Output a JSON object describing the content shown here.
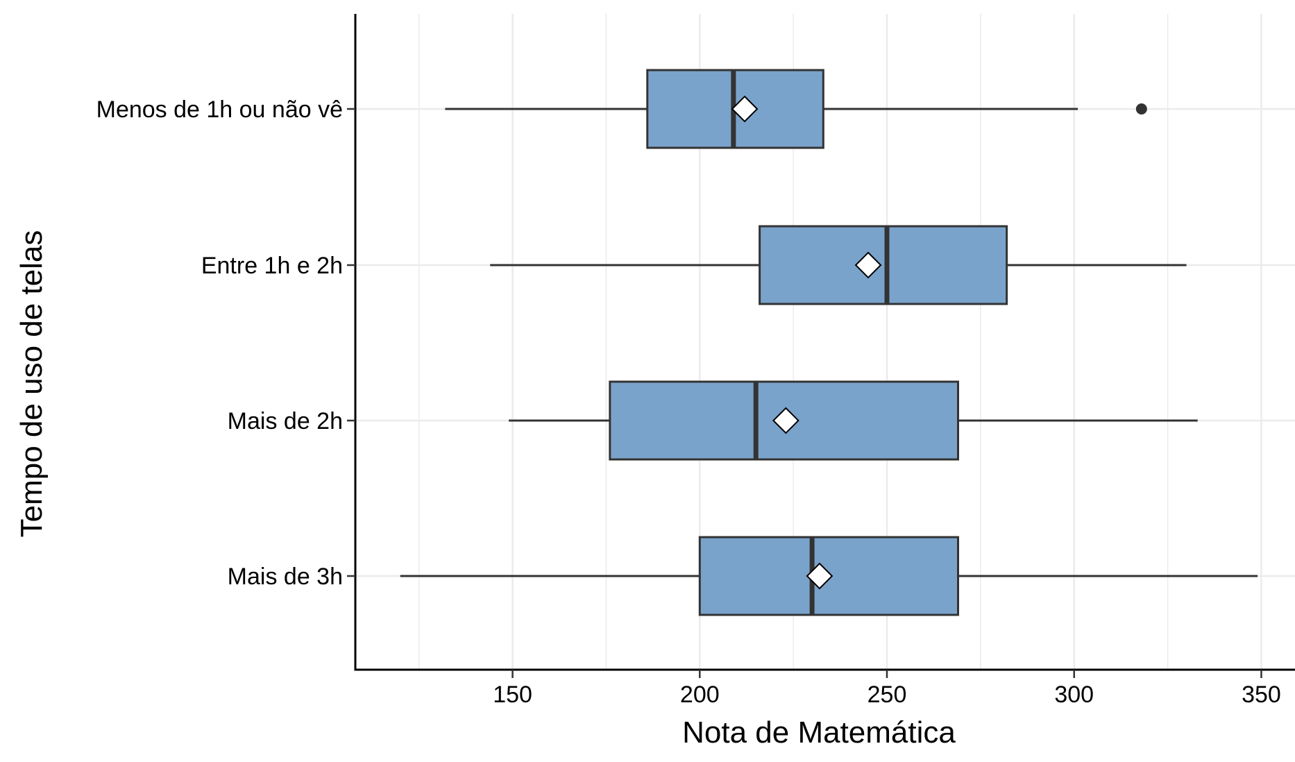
{
  "chart_data": {
    "type": "boxplot",
    "orientation": "horizontal",
    "title": "",
    "xlabel": "Nota de Matemática",
    "ylabel": "Tempo de uso de telas",
    "xlim": [
      108,
      359
    ],
    "xticks": [
      150,
      200,
      250,
      300,
      350
    ],
    "x_minor_grid": [
      125,
      175,
      225,
      275,
      325
    ],
    "grid": true,
    "legend": "none",
    "colors": {
      "box_fill": "#7aa3cb",
      "box_stroke": "#333333",
      "grid": "#ebebeb",
      "axis": "#000000",
      "mean_fill": "#ffffff"
    },
    "categories": [
      "Menos de 1h ou não vê",
      "Entre 1h e 2h",
      "Mais de 2h",
      "Mais de 3h"
    ],
    "boxes": [
      {
        "category": "Menos de 1h ou não vê",
        "whisker_low": 132,
        "q1": 186,
        "median": 209,
        "q3": 233,
        "whisker_high": 301,
        "mean": 212,
        "outliers": [
          318
        ]
      },
      {
        "category": "Entre 1h e 2h",
        "whisker_low": 144,
        "q1": 216,
        "median": 250,
        "q3": 282,
        "whisker_high": 330,
        "mean": 245,
        "outliers": []
      },
      {
        "category": "Mais de 2h",
        "whisker_low": 149,
        "q1": 176,
        "median": 215,
        "q3": 269,
        "whisker_high": 333,
        "mean": 223,
        "outliers": []
      },
      {
        "category": "Mais de 3h",
        "whisker_low": 120,
        "q1": 200,
        "median": 230,
        "q3": 269,
        "whisker_high": 349,
        "mean": 232,
        "outliers": []
      }
    ]
  }
}
